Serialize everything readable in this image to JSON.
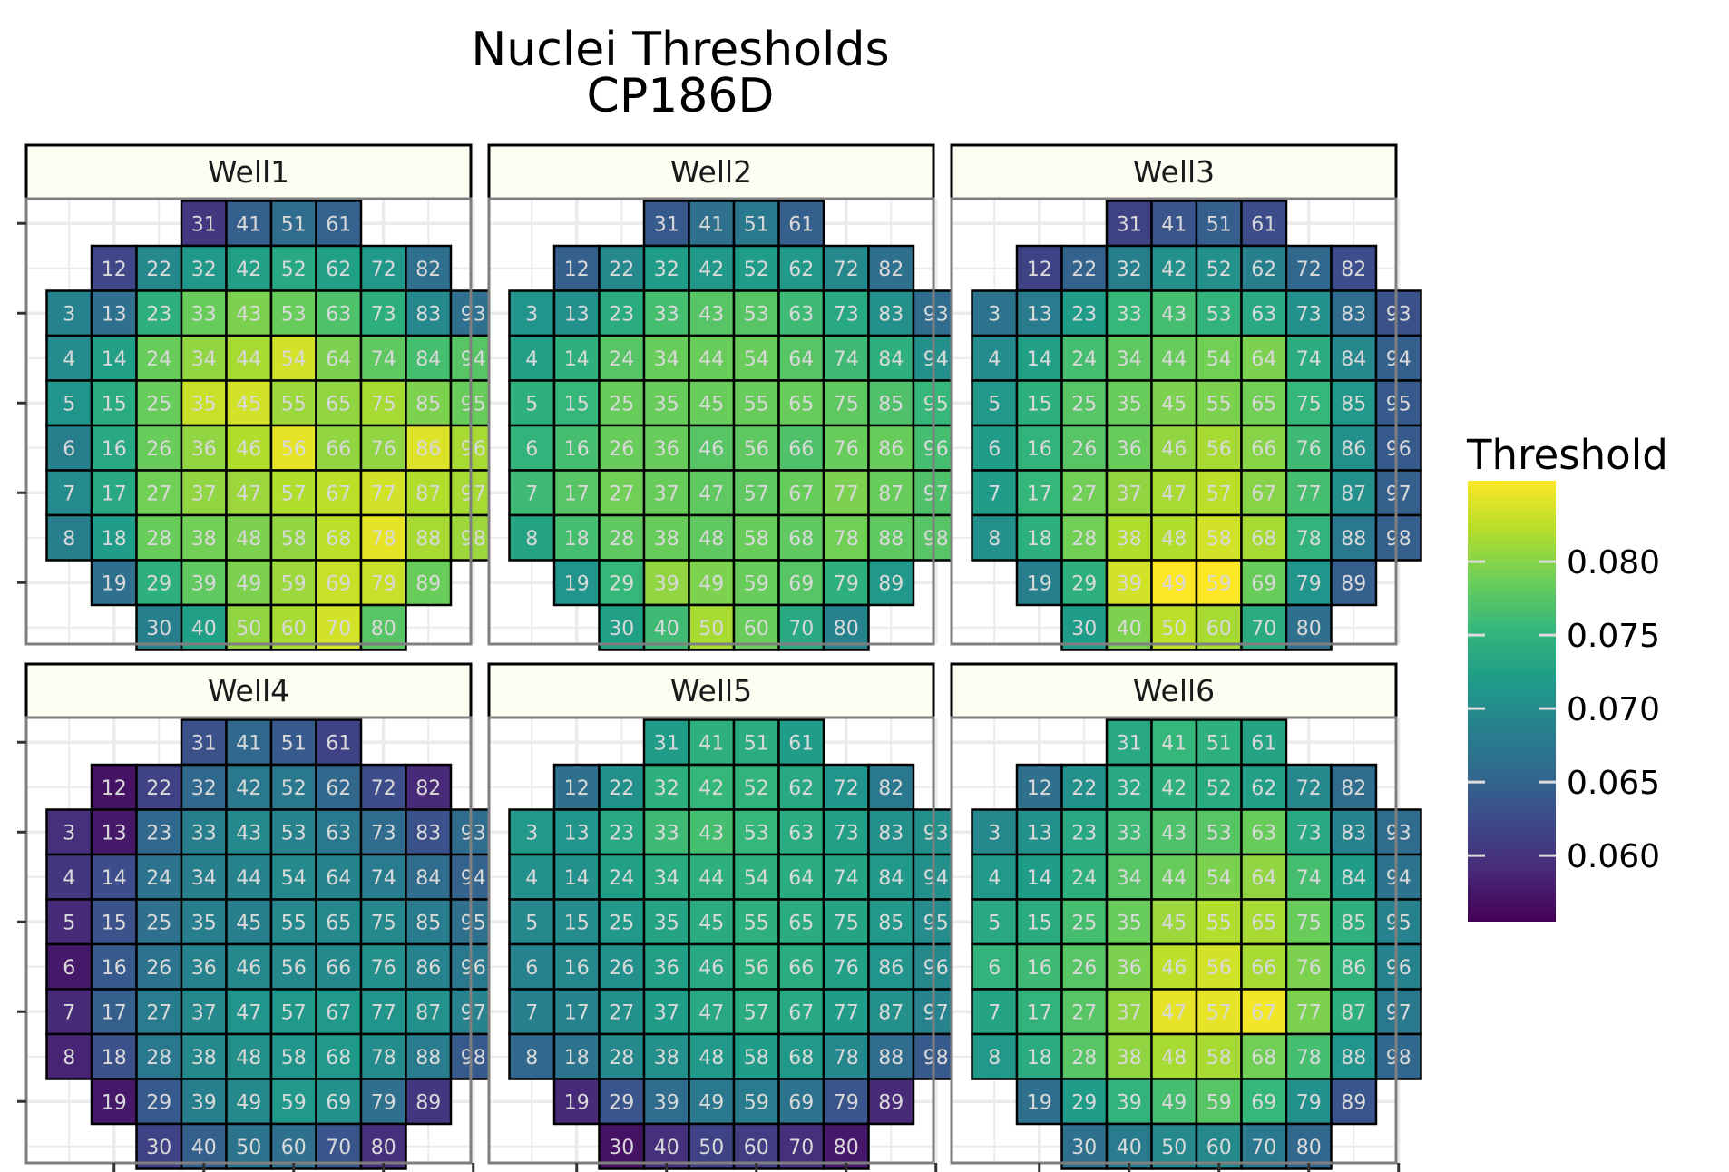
{
  "chart_data": {
    "type": "heatmap",
    "title": "Nuclei Thresholds",
    "subtitle": "CP186D",
    "legend": {
      "title": "Threshold",
      "placement": "right",
      "colorscale": "viridis",
      "range": [
        0.0555,
        0.0855
      ],
      "ticks": [
        0.06,
        0.065,
        0.07,
        0.075,
        0.08
      ],
      "tick_labels": [
        "0.060",
        "0.065",
        "0.070",
        "0.075",
        "0.080"
      ]
    },
    "axes": {
      "x_ticks_labeled": false,
      "y_ticks_labeled": false,
      "grid": true
    },
    "panels": [
      {
        "name": "Well1",
        "values": {
          "31": 0.0605,
          "41": 0.0645,
          "51": 0.066,
          "61": 0.065,
          "12": 0.062,
          "22": 0.0695,
          "32": 0.0715,
          "42": 0.0725,
          "52": 0.0735,
          "62": 0.0725,
          "72": 0.0715,
          "82": 0.0665,
          "3": 0.069,
          "13": 0.0665,
          "23": 0.0745,
          "33": 0.0785,
          "43": 0.0795,
          "53": 0.0785,
          "63": 0.077,
          "73": 0.0745,
          "83": 0.0695,
          "93": 0.0665,
          "4": 0.07,
          "14": 0.0725,
          "24": 0.0785,
          "34": 0.0805,
          "44": 0.0815,
          "54": 0.0835,
          "64": 0.0795,
          "74": 0.078,
          "84": 0.0765,
          "94": 0.0775,
          "5": 0.071,
          "15": 0.074,
          "25": 0.0785,
          "35": 0.083,
          "45": 0.0835,
          "55": 0.081,
          "65": 0.0805,
          "75": 0.0815,
          "85": 0.0795,
          "95": 0.0785,
          "6": 0.0685,
          "16": 0.0735,
          "26": 0.0785,
          "36": 0.0805,
          "46": 0.082,
          "56": 0.0845,
          "66": 0.0805,
          "76": 0.0805,
          "86": 0.084,
          "96": 0.0815,
          "7": 0.07,
          "17": 0.0735,
          "27": 0.079,
          "37": 0.0805,
          "47": 0.081,
          "57": 0.082,
          "67": 0.0825,
          "77": 0.0835,
          "87": 0.082,
          "97": 0.0815,
          "8": 0.0685,
          "18": 0.072,
          "28": 0.0785,
          "38": 0.079,
          "48": 0.0795,
          "58": 0.0805,
          "68": 0.0825,
          "78": 0.0845,
          "88": 0.0815,
          "98": 0.081,
          "19": 0.0665,
          "29": 0.0745,
          "39": 0.078,
          "49": 0.0795,
          "59": 0.081,
          "69": 0.083,
          "79": 0.083,
          "89": 0.0785,
          "30": 0.0685,
          "40": 0.0725,
          "50": 0.0805,
          "60": 0.0815,
          "70": 0.0835,
          "80": 0.0775
        }
      },
      {
        "name": "Well2",
        "values": {
          "31": 0.064,
          "41": 0.0665,
          "51": 0.0675,
          "61": 0.0645,
          "12": 0.0645,
          "22": 0.0695,
          "32": 0.072,
          "42": 0.0715,
          "52": 0.072,
          "62": 0.0715,
          "72": 0.0695,
          "82": 0.0665,
          "3": 0.071,
          "13": 0.0705,
          "23": 0.074,
          "33": 0.0765,
          "43": 0.0775,
          "53": 0.0775,
          "63": 0.076,
          "73": 0.0735,
          "83": 0.0705,
          "93": 0.066,
          "4": 0.0725,
          "14": 0.0745,
          "24": 0.0775,
          "34": 0.0785,
          "44": 0.0785,
          "54": 0.0785,
          "64": 0.0775,
          "74": 0.076,
          "84": 0.0745,
          "94": 0.0705,
          "5": 0.0745,
          "15": 0.0755,
          "25": 0.0785,
          "35": 0.0785,
          "45": 0.0785,
          "55": 0.0785,
          "65": 0.0785,
          "75": 0.078,
          "85": 0.077,
          "95": 0.0755,
          "6": 0.075,
          "16": 0.0765,
          "26": 0.0785,
          "36": 0.0785,
          "46": 0.0775,
          "56": 0.078,
          "66": 0.077,
          "76": 0.0785,
          "86": 0.0785,
          "96": 0.0765,
          "7": 0.076,
          "17": 0.0775,
          "27": 0.079,
          "37": 0.0785,
          "47": 0.078,
          "57": 0.078,
          "67": 0.0785,
          "77": 0.0795,
          "87": 0.0785,
          "97": 0.077,
          "8": 0.073,
          "18": 0.0765,
          "28": 0.078,
          "38": 0.0785,
          "48": 0.078,
          "58": 0.0785,
          "68": 0.078,
          "78": 0.079,
          "88": 0.078,
          "98": 0.0775,
          "19": 0.071,
          "29": 0.0755,
          "39": 0.0805,
          "49": 0.0795,
          "59": 0.0785,
          "69": 0.0775,
          "79": 0.0745,
          "89": 0.0715,
          "30": 0.0725,
          "40": 0.076,
          "50": 0.0815,
          "60": 0.0785,
          "70": 0.0735,
          "80": 0.069
        }
      },
      {
        "name": "Well3",
        "values": {
          "31": 0.0615,
          "41": 0.0635,
          "51": 0.0645,
          "61": 0.0625,
          "12": 0.0615,
          "22": 0.065,
          "32": 0.0685,
          "42": 0.0705,
          "52": 0.0705,
          "62": 0.0685,
          "72": 0.0655,
          "82": 0.0625,
          "3": 0.067,
          "13": 0.068,
          "23": 0.072,
          "33": 0.0755,
          "43": 0.0765,
          "53": 0.075,
          "63": 0.0735,
          "73": 0.0705,
          "83": 0.066,
          "93": 0.063,
          "4": 0.07,
          "14": 0.0725,
          "24": 0.0765,
          "34": 0.078,
          "44": 0.0785,
          "54": 0.079,
          "64": 0.0795,
          "74": 0.074,
          "84": 0.0695,
          "94": 0.0645,
          "5": 0.0715,
          "15": 0.0745,
          "25": 0.0775,
          "35": 0.0785,
          "45": 0.0795,
          "55": 0.0795,
          "65": 0.079,
          "75": 0.0755,
          "85": 0.0715,
          "95": 0.064,
          "6": 0.072,
          "16": 0.075,
          "26": 0.0775,
          "36": 0.0785,
          "46": 0.0805,
          "56": 0.0815,
          "66": 0.08,
          "76": 0.076,
          "86": 0.0705,
          "96": 0.064,
          "7": 0.072,
          "17": 0.0755,
          "27": 0.079,
          "37": 0.0805,
          "47": 0.0815,
          "57": 0.0825,
          "67": 0.08,
          "77": 0.0765,
          "87": 0.0705,
          "97": 0.0645,
          "8": 0.0705,
          "18": 0.0745,
          "28": 0.079,
          "38": 0.082,
          "48": 0.082,
          "58": 0.0835,
          "68": 0.0815,
          "78": 0.075,
          "88": 0.0675,
          "98": 0.0645,
          "19": 0.0685,
          "29": 0.0745,
          "39": 0.0835,
          "49": 0.0855,
          "59": 0.0855,
          "69": 0.0785,
          "79": 0.071,
          "89": 0.0645,
          "30": 0.072,
          "40": 0.0795,
          "50": 0.0825,
          "60": 0.0815,
          "70": 0.074,
          "80": 0.0665
        }
      },
      {
        "name": "Well4",
        "values": {
          "31": 0.063,
          "41": 0.0655,
          "51": 0.064,
          "61": 0.0615,
          "12": 0.057,
          "22": 0.0615,
          "32": 0.0655,
          "42": 0.0675,
          "52": 0.0675,
          "62": 0.0655,
          "72": 0.0625,
          "82": 0.059,
          "3": 0.0595,
          "13": 0.0575,
          "23": 0.0655,
          "33": 0.0685,
          "43": 0.0695,
          "53": 0.069,
          "63": 0.0675,
          "73": 0.066,
          "83": 0.063,
          "93": 0.066,
          "4": 0.0605,
          "14": 0.0625,
          "24": 0.067,
          "34": 0.0685,
          "44": 0.069,
          "54": 0.0695,
          "64": 0.069,
          "74": 0.068,
          "84": 0.066,
          "94": 0.065,
          "5": 0.059,
          "15": 0.063,
          "25": 0.0665,
          "35": 0.0685,
          "45": 0.0685,
          "55": 0.0695,
          "65": 0.0695,
          "75": 0.0695,
          "85": 0.068,
          "95": 0.0665,
          "6": 0.0575,
          "16": 0.064,
          "26": 0.067,
          "36": 0.069,
          "46": 0.0695,
          "56": 0.0695,
          "66": 0.0695,
          "76": 0.0705,
          "86": 0.069,
          "96": 0.0675,
          "7": 0.059,
          "17": 0.0645,
          "27": 0.068,
          "37": 0.0695,
          "47": 0.071,
          "57": 0.0715,
          "67": 0.0715,
          "77": 0.071,
          "87": 0.0705,
          "97": 0.069,
          "8": 0.0585,
          "18": 0.063,
          "28": 0.0675,
          "38": 0.0695,
          "48": 0.0705,
          "58": 0.071,
          "68": 0.0715,
          "78": 0.07,
          "88": 0.068,
          "98": 0.064,
          "19": 0.0575,
          "29": 0.064,
          "39": 0.0685,
          "49": 0.0695,
          "59": 0.0715,
          "69": 0.0705,
          "79": 0.0665,
          "89": 0.0605,
          "30": 0.0615,
          "40": 0.0645,
          "50": 0.067,
          "60": 0.0665,
          "70": 0.0635,
          "80": 0.0595
        }
      },
      {
        "name": "Well5",
        "values": {
          "31": 0.072,
          "41": 0.0745,
          "51": 0.074,
          "61": 0.072,
          "12": 0.0665,
          "22": 0.0705,
          "32": 0.0745,
          "42": 0.0755,
          "52": 0.075,
          "62": 0.0735,
          "72": 0.071,
          "82": 0.0675,
          "3": 0.0715,
          "13": 0.071,
          "23": 0.0735,
          "33": 0.076,
          "43": 0.0765,
          "53": 0.0755,
          "63": 0.074,
          "73": 0.0725,
          "83": 0.0705,
          "93": 0.0705,
          "4": 0.0705,
          "14": 0.0705,
          "24": 0.0725,
          "34": 0.074,
          "44": 0.0745,
          "54": 0.0745,
          "64": 0.074,
          "74": 0.073,
          "84": 0.0715,
          "94": 0.0705,
          "5": 0.0695,
          "15": 0.07,
          "25": 0.0715,
          "35": 0.073,
          "45": 0.074,
          "55": 0.0745,
          "65": 0.074,
          "75": 0.073,
          "85": 0.0715,
          "95": 0.07,
          "6": 0.069,
          "16": 0.0695,
          "26": 0.0705,
          "36": 0.0725,
          "46": 0.0735,
          "56": 0.0745,
          "66": 0.074,
          "76": 0.0725,
          "86": 0.071,
          "96": 0.0695,
          "7": 0.0685,
          "17": 0.069,
          "27": 0.0705,
          "37": 0.072,
          "47": 0.0735,
          "57": 0.074,
          "67": 0.0735,
          "77": 0.072,
          "87": 0.0705,
          "97": 0.069,
          "8": 0.0655,
          "18": 0.067,
          "28": 0.0695,
          "38": 0.0705,
          "48": 0.0715,
          "58": 0.072,
          "68": 0.0715,
          "78": 0.0695,
          "88": 0.066,
          "98": 0.064,
          "19": 0.059,
          "29": 0.0635,
          "39": 0.066,
          "49": 0.0675,
          "59": 0.068,
          "69": 0.067,
          "79": 0.0635,
          "89": 0.059,
          "30": 0.057,
          "40": 0.0595,
          "50": 0.0615,
          "60": 0.061,
          "70": 0.0595,
          "80": 0.0575
        }
      },
      {
        "name": "Well6",
        "values": {
          "31": 0.0735,
          "41": 0.0755,
          "51": 0.0745,
          "61": 0.073,
          "12": 0.0665,
          "22": 0.0705,
          "32": 0.0735,
          "42": 0.0745,
          "52": 0.074,
          "62": 0.0725,
          "72": 0.0695,
          "82": 0.066,
          "3": 0.0695,
          "13": 0.0705,
          "23": 0.0735,
          "33": 0.076,
          "43": 0.077,
          "53": 0.0775,
          "63": 0.0785,
          "73": 0.0735,
          "83": 0.069,
          "93": 0.066,
          "4": 0.0715,
          "14": 0.072,
          "24": 0.0745,
          "34": 0.0775,
          "44": 0.0785,
          "54": 0.0795,
          "64": 0.0805,
          "74": 0.0765,
          "84": 0.072,
          "94": 0.067,
          "5": 0.0735,
          "15": 0.074,
          "25": 0.0765,
          "35": 0.0785,
          "45": 0.081,
          "55": 0.082,
          "65": 0.0815,
          "75": 0.0785,
          "85": 0.0745,
          "95": 0.069,
          "6": 0.075,
          "16": 0.076,
          "26": 0.0775,
          "36": 0.0795,
          "46": 0.0825,
          "56": 0.0835,
          "66": 0.0815,
          "76": 0.0795,
          "86": 0.075,
          "96": 0.069,
          "7": 0.073,
          "17": 0.075,
          "27": 0.0775,
          "37": 0.0805,
          "47": 0.0845,
          "57": 0.0845,
          "67": 0.085,
          "77": 0.0795,
          "87": 0.0745,
          "97": 0.0675,
          "8": 0.0715,
          "18": 0.074,
          "28": 0.0775,
          "38": 0.0805,
          "48": 0.0815,
          "58": 0.0815,
          "68": 0.079,
          "78": 0.0765,
          "88": 0.071,
          "98": 0.0655,
          "19": 0.0665,
          "29": 0.072,
          "39": 0.075,
          "49": 0.0765,
          "59": 0.0775,
          "69": 0.0755,
          "79": 0.0705,
          "89": 0.0635,
          "30": 0.0665,
          "40": 0.068,
          "50": 0.0695,
          "60": 0.0695,
          "70": 0.0675,
          "80": 0.0655
        }
      }
    ]
  }
}
